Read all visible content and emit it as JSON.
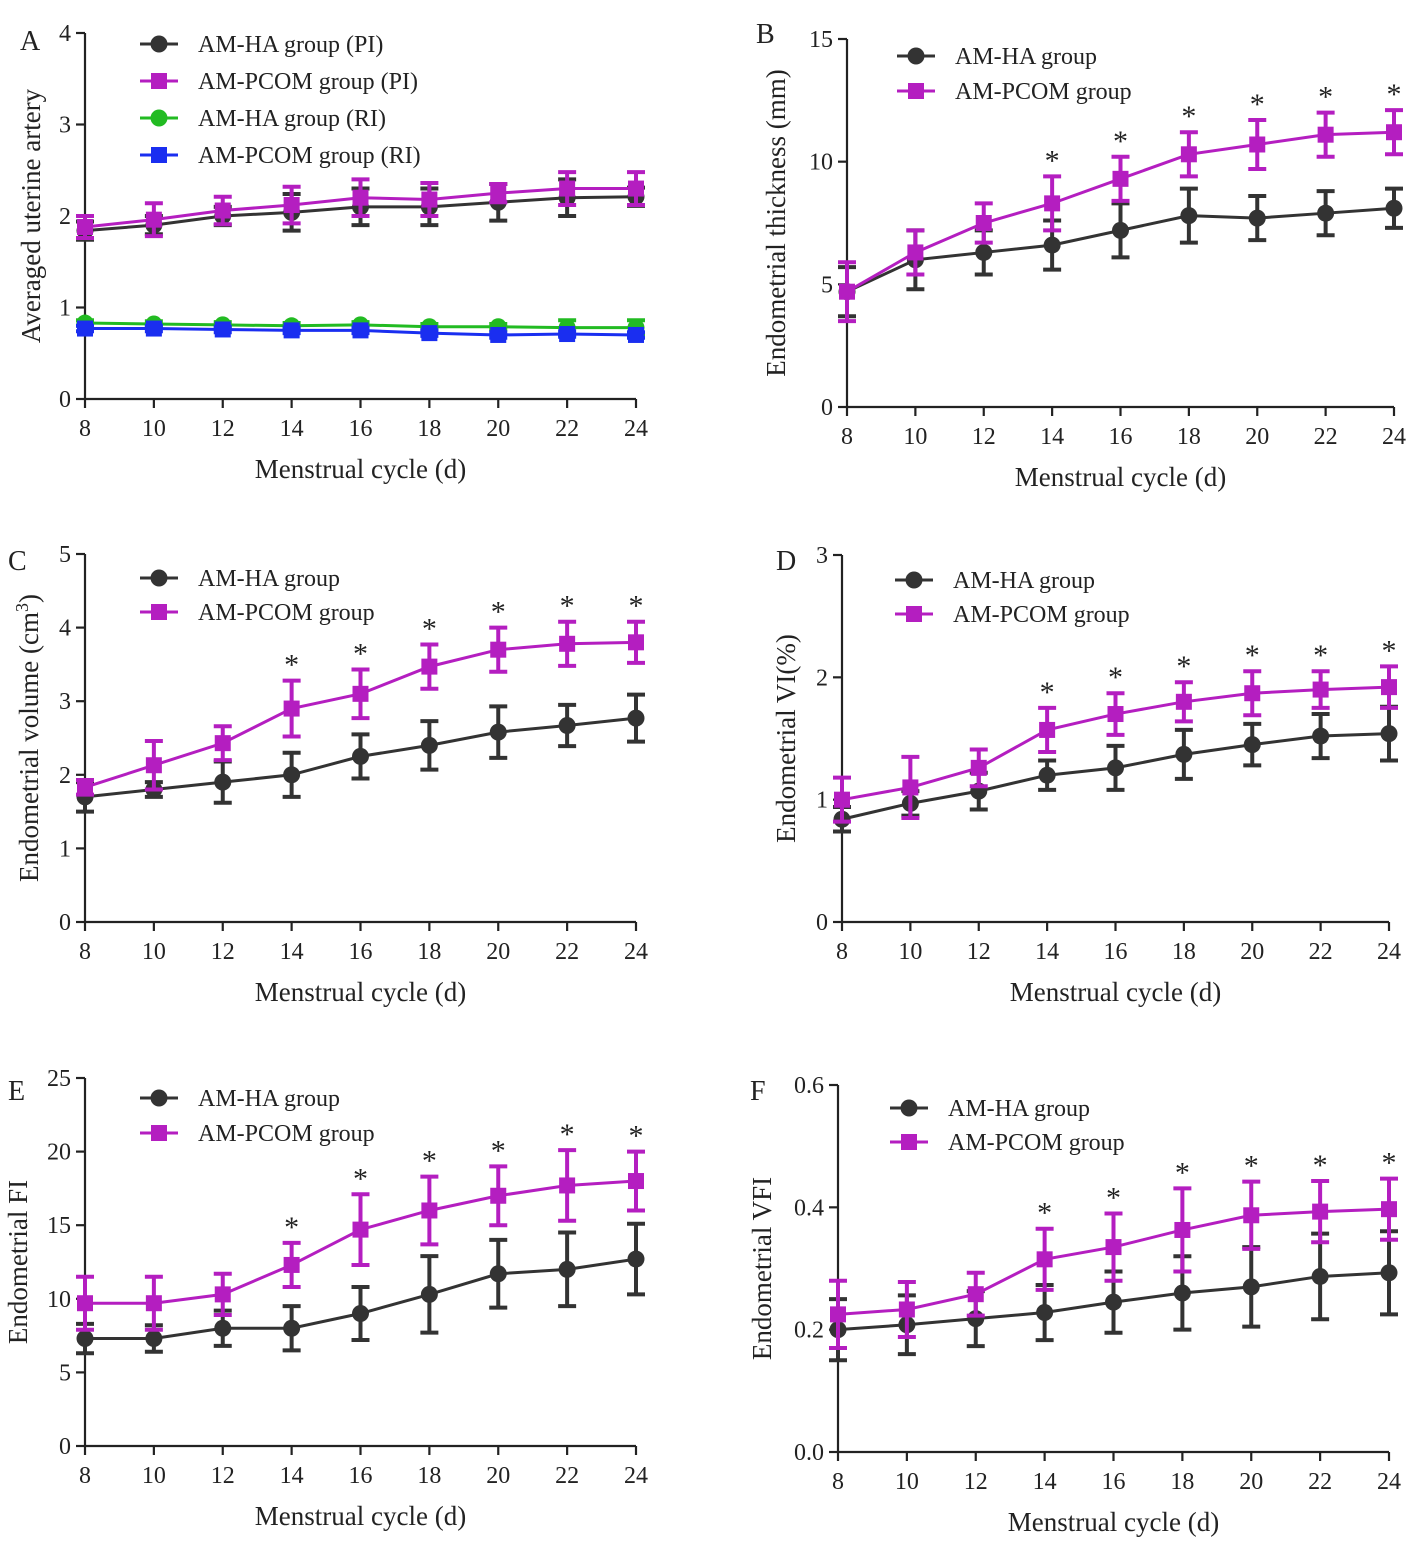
{
  "colors": {
    "am_ha": "#333333",
    "am_pcom": "#b41ec0",
    "am_ha_ri": "#22bb22",
    "am_pcom_ri": "#1a2ef0",
    "axis": "#222222"
  },
  "chart_data": [
    {
      "panel": "A",
      "type": "line",
      "title": "",
      "xlabel": "Menstrual cycle (d)",
      "ylabel": "Averaged uterine artery",
      "x": [
        8,
        10,
        12,
        14,
        16,
        18,
        20,
        22,
        24
      ],
      "xlim": [
        8,
        24
      ],
      "ylim": [
        0,
        4
      ],
      "yticks": [
        0,
        1,
        2,
        3,
        4
      ],
      "ytick_labels": [
        "0",
        "1",
        "2",
        "3",
        "4"
      ],
      "legend_position": "top-left",
      "grid": false,
      "significance": [],
      "series": [
        {
          "name": "AM-HA group (PI)",
          "marker": "circle",
          "color": "#333333",
          "values": [
            1.84,
            1.9,
            2.0,
            2.04,
            2.1,
            2.1,
            2.15,
            2.2,
            2.21
          ],
          "errors": [
            0.1,
            0.1,
            0.1,
            0.2,
            0.2,
            0.2,
            0.2,
            0.2,
            0.1
          ]
        },
        {
          "name": "AM-PCOM group (PI)",
          "marker": "square",
          "color": "#b41ec0",
          "values": [
            1.88,
            1.96,
            2.06,
            2.12,
            2.2,
            2.18,
            2.25,
            2.3,
            2.3
          ],
          "errors": [
            0.12,
            0.18,
            0.15,
            0.2,
            0.2,
            0.18,
            0.1,
            0.18,
            0.18
          ]
        },
        {
          "name": "AM-HA group (RI)",
          "marker": "circle",
          "color": "#22bb22",
          "values": [
            0.83,
            0.82,
            0.81,
            0.8,
            0.81,
            0.79,
            0.79,
            0.78,
            0.78
          ],
          "errors": [
            0.03,
            0.03,
            0.03,
            0.03,
            0.03,
            0.03,
            0.03,
            0.08,
            0.08
          ]
        },
        {
          "name": "AM-PCOM group (RI)",
          "marker": "square",
          "color": "#1a2ef0",
          "values": [
            0.77,
            0.77,
            0.76,
            0.75,
            0.75,
            0.72,
            0.7,
            0.71,
            0.7
          ],
          "errors": [
            0.03,
            0.03,
            0.03,
            0.03,
            0.03,
            0.03,
            0.03,
            0.03,
            0.03
          ]
        }
      ]
    },
    {
      "panel": "B",
      "type": "line",
      "title": "",
      "xlabel": "Menstrual cycle (d)",
      "ylabel": "Endometrial thickness (mm)",
      "x": [
        8,
        10,
        12,
        14,
        16,
        18,
        20,
        22,
        24
      ],
      "xlim": [
        8,
        24
      ],
      "ylim": [
        0,
        15
      ],
      "yticks": [
        0,
        5,
        10,
        15
      ],
      "ytick_labels": [
        "0",
        "5",
        "10",
        "15"
      ],
      "legend_position": "top-left",
      "grid": false,
      "significance": [
        14,
        16,
        18,
        20,
        22,
        24
      ],
      "series": [
        {
          "name": "AM-HA group",
          "marker": "circle",
          "color": "#333333",
          "values": [
            4.7,
            6.0,
            6.3,
            6.6,
            7.2,
            7.8,
            7.7,
            7.9,
            8.1
          ],
          "errors": [
            1.0,
            1.2,
            0.9,
            1.0,
            1.1,
            1.1,
            0.9,
            0.9,
            0.8
          ]
        },
        {
          "name": "AM-PCOM group",
          "marker": "square",
          "color": "#b41ec0",
          "values": [
            4.7,
            6.3,
            7.5,
            8.3,
            9.3,
            10.3,
            10.7,
            11.1,
            11.2
          ],
          "errors": [
            1.2,
            0.9,
            0.8,
            1.1,
            0.9,
            0.9,
            1.0,
            0.9,
            0.9
          ]
        }
      ]
    },
    {
      "panel": "C",
      "type": "line",
      "title": "",
      "xlabel": "Menstrual cycle (d)",
      "ylabel": "Endometrial volume (cm",
      "ylabel_sup": "3",
      "ylabel_close": ")",
      "x": [
        8,
        10,
        12,
        14,
        16,
        18,
        20,
        22,
        24
      ],
      "xlim": [
        8,
        24
      ],
      "ylim": [
        0,
        5
      ],
      "yticks": [
        0,
        1,
        2,
        3,
        4,
        5
      ],
      "ytick_labels": [
        "0",
        "1",
        "2",
        "3",
        "4",
        "5"
      ],
      "legend_position": "top-left",
      "grid": false,
      "significance": [
        14,
        16,
        18,
        20,
        22,
        24
      ],
      "series": [
        {
          "name": "AM-HA group",
          "marker": "circle",
          "color": "#333333",
          "values": [
            1.7,
            1.8,
            1.9,
            2.0,
            2.25,
            2.4,
            2.58,
            2.67,
            2.77
          ],
          "errors": [
            0.2,
            0.1,
            0.28,
            0.3,
            0.3,
            0.33,
            0.35,
            0.28,
            0.32
          ]
        },
        {
          "name": "AM-PCOM group",
          "marker": "square",
          "color": "#b41ec0",
          "values": [
            1.83,
            2.13,
            2.43,
            2.9,
            3.1,
            3.47,
            3.7,
            3.78,
            3.8
          ],
          "errors": [
            0.1,
            0.33,
            0.23,
            0.38,
            0.33,
            0.3,
            0.3,
            0.3,
            0.28
          ]
        }
      ]
    },
    {
      "panel": "D",
      "type": "line",
      "title": "",
      "xlabel": "Menstrual cycle (d)",
      "ylabel": "Endometrial VI(%)",
      "x": [
        8,
        10,
        12,
        14,
        16,
        18,
        20,
        22,
        24
      ],
      "xlim": [
        8,
        24
      ],
      "ylim": [
        0,
        3
      ],
      "yticks": [
        0,
        1,
        2,
        3
      ],
      "ytick_labels": [
        "0",
        "1",
        "2",
        "3"
      ],
      "legend_position": "top-left",
      "grid": false,
      "significance": [
        14,
        16,
        18,
        20,
        22,
        24
      ],
      "series": [
        {
          "name": "AM-HA group",
          "marker": "circle",
          "color": "#333333",
          "values": [
            0.84,
            0.97,
            1.07,
            1.2,
            1.26,
            1.37,
            1.45,
            1.52,
            1.54
          ],
          "errors": [
            0.1,
            0.1,
            0.15,
            0.12,
            0.18,
            0.2,
            0.17,
            0.18,
            0.22
          ]
        },
        {
          "name": "AM-PCOM group",
          "marker": "square",
          "color": "#b41ec0",
          "values": [
            1.0,
            1.1,
            1.26,
            1.57,
            1.7,
            1.8,
            1.87,
            1.9,
            1.92
          ],
          "errors": [
            0.18,
            0.25,
            0.15,
            0.18,
            0.17,
            0.16,
            0.18,
            0.15,
            0.17
          ]
        }
      ]
    },
    {
      "panel": "E",
      "type": "line",
      "title": "",
      "xlabel": "Menstrual cycle (d)",
      "ylabel": "Endometrial FI",
      "x": [
        8,
        10,
        12,
        14,
        16,
        18,
        20,
        22,
        24
      ],
      "xlim": [
        8,
        24
      ],
      "ylim": [
        0,
        25
      ],
      "yticks": [
        0,
        5,
        10,
        15,
        20,
        25
      ],
      "ytick_labels": [
        "0",
        "5",
        "10",
        "15",
        "20",
        "25"
      ],
      "legend_position": "top-left",
      "grid": false,
      "significance": [
        14,
        16,
        18,
        20,
        22,
        24
      ],
      "series": [
        {
          "name": "AM-HA group",
          "marker": "circle",
          "color": "#333333",
          "values": [
            7.3,
            7.3,
            8.0,
            8.0,
            9.0,
            10.3,
            11.7,
            12.0,
            12.7
          ],
          "errors": [
            1.0,
            0.9,
            1.2,
            1.5,
            1.8,
            2.6,
            2.3,
            2.5,
            2.4
          ]
        },
        {
          "name": "AM-PCOM group",
          "marker": "square",
          "color": "#b41ec0",
          "values": [
            9.7,
            9.7,
            10.3,
            12.3,
            14.7,
            16.0,
            17.0,
            17.7,
            18.0
          ],
          "errors": [
            1.8,
            1.8,
            1.4,
            1.5,
            2.4,
            2.3,
            2.0,
            2.4,
            2.0
          ]
        }
      ]
    },
    {
      "panel": "F",
      "type": "line",
      "title": "",
      "xlabel": "Menstrual cycle (d)",
      "ylabel": "Endometrial VFI",
      "x": [
        8,
        10,
        12,
        14,
        16,
        18,
        20,
        22,
        24
      ],
      "xlim": [
        8,
        24
      ],
      "ylim": [
        0,
        0.6
      ],
      "yticks": [
        0,
        0.2,
        0.4,
        0.6
      ],
      "ytick_labels": [
        "0.0",
        "0.2",
        "0.4",
        "0.6"
      ],
      "legend_position": "top-left",
      "grid": false,
      "significance": [
        14,
        16,
        18,
        20,
        22,
        24
      ],
      "series": [
        {
          "name": "AM-HA group",
          "marker": "circle",
          "color": "#333333",
          "values": [
            0.2,
            0.208,
            0.218,
            0.228,
            0.245,
            0.26,
            0.27,
            0.287,
            0.293
          ],
          "errors": [
            0.05,
            0.048,
            0.045,
            0.045,
            0.05,
            0.06,
            0.065,
            0.07,
            0.068
          ]
        },
        {
          "name": "AM-PCOM group",
          "marker": "square",
          "color": "#b41ec0",
          "values": [
            0.225,
            0.233,
            0.258,
            0.315,
            0.335,
            0.363,
            0.387,
            0.393,
            0.397
          ],
          "errors": [
            0.055,
            0.045,
            0.035,
            0.05,
            0.055,
            0.068,
            0.055,
            0.05,
            0.05
          ]
        }
      ]
    }
  ]
}
